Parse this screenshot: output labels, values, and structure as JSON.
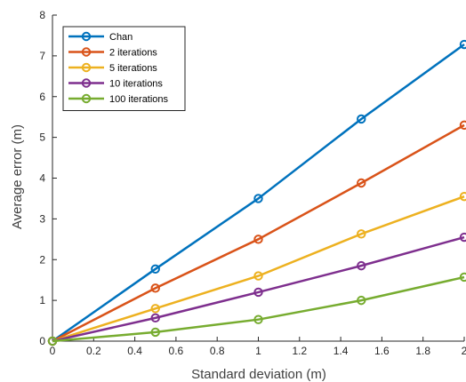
{
  "chart_data": {
    "type": "line",
    "xlabel": "Standard deviation (m)",
    "ylabel": "Average error (m)",
    "xlim": [
      0,
      2
    ],
    "ylim": [
      0,
      8
    ],
    "x_ticks": [
      "0",
      "0.2",
      "0.4",
      "0.6",
      "0.8",
      "1",
      "1.2",
      "1.4",
      "1.6",
      "1.8",
      "2"
    ],
    "y_ticks": [
      "0",
      "1",
      "2",
      "3",
      "4",
      "5",
      "6",
      "7",
      "8"
    ],
    "grid": false,
    "legend_position": "top-left",
    "x": [
      0,
      0.5,
      1,
      1.5,
      2
    ],
    "series": [
      {
        "name": "Chan",
        "color": "#0072BD",
        "marker": "circle",
        "values": [
          0,
          1.77,
          3.5,
          5.45,
          7.28
        ]
      },
      {
        "name": "2 iterations",
        "color": "#D95319",
        "marker": "circle",
        "values": [
          0,
          1.3,
          2.5,
          3.88,
          5.3
        ]
      },
      {
        "name": "5 iterations",
        "color": "#EDB120",
        "marker": "circle",
        "values": [
          0,
          0.8,
          1.6,
          2.63,
          3.55
        ]
      },
      {
        "name": "10 iterations",
        "color": "#7E2F8E",
        "marker": "circle",
        "values": [
          0,
          0.57,
          1.2,
          1.85,
          2.55
        ]
      },
      {
        "name": "100 iterations",
        "color": "#77AC30",
        "marker": "circle",
        "values": [
          0,
          0.22,
          0.53,
          1.0,
          1.57
        ]
      }
    ]
  }
}
